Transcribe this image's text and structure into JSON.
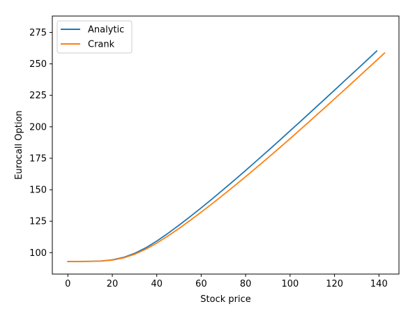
{
  "chart_data": {
    "type": "line",
    "xlabel": "Stock price",
    "ylabel": "Eurocall Option",
    "xlim": [
      -7,
      149
    ],
    "ylim": [
      83,
      288
    ],
    "x_ticks": [
      0,
      20,
      40,
      60,
      80,
      100,
      120,
      140
    ],
    "y_ticks": [
      100,
      125,
      150,
      175,
      200,
      225,
      250,
      275
    ],
    "grid": false,
    "legend_position": "top-left",
    "series": [
      {
        "name": "Analytic",
        "color": "#1f77b4",
        "x": [
          0,
          5,
          10,
          15,
          20,
          25,
          30,
          35,
          40,
          45,
          50,
          55,
          60,
          65,
          70,
          75,
          80,
          85,
          90,
          95,
          100,
          105,
          110,
          115,
          120,
          125,
          130,
          135,
          139
        ],
        "y": [
          93,
          93,
          93.1,
          93.4,
          94.3,
          96.2,
          99.4,
          103.8,
          109.2,
          115.3,
          121.8,
          128.6,
          135.6,
          142.8,
          150.2,
          157.7,
          165.3,
          173.1,
          180.9,
          188.8,
          196.8,
          204.8,
          212.9,
          221,
          229.1,
          237.3,
          245.4,
          253.6,
          260.2
        ]
      },
      {
        "name": "Crank",
        "color": "#ff7f0e",
        "x": [
          0,
          5,
          10,
          15,
          20,
          25,
          30,
          35,
          40,
          45,
          50,
          55,
          60,
          65,
          70,
          75,
          80,
          85,
          90,
          95,
          100,
          105,
          110,
          115,
          120,
          125,
          130,
          135,
          140,
          142.5
        ],
        "y": [
          93,
          93,
          93.1,
          93.3,
          94.1,
          95.8,
          98.7,
          102.7,
          107.6,
          113.2,
          119.2,
          125.6,
          132.2,
          139,
          146,
          153.1,
          160.4,
          167.8,
          175.3,
          182.9,
          190.6,
          198.4,
          206.3,
          214.2,
          222.2,
          230.2,
          238.3,
          246.4,
          254.5,
          258.6
        ]
      }
    ]
  }
}
